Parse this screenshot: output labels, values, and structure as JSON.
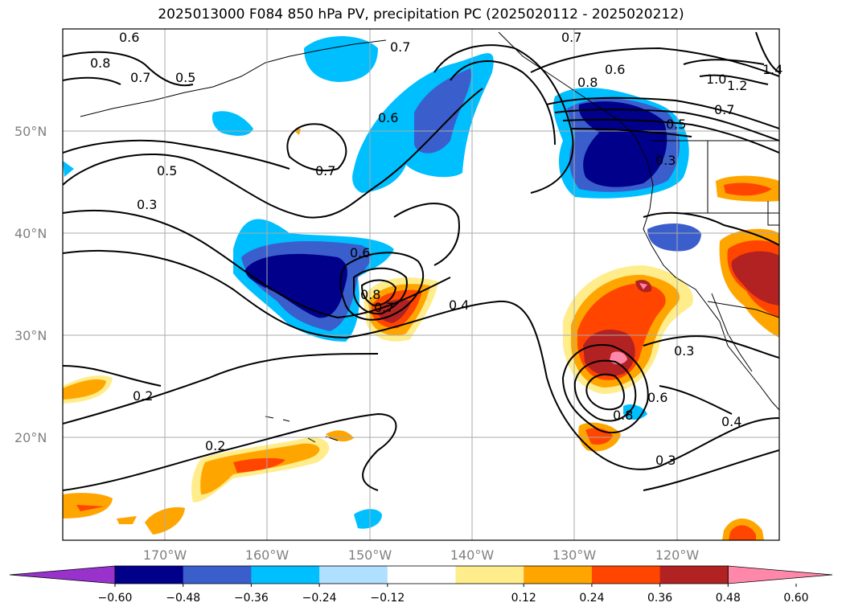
{
  "title": "2025013000 F084 850 hPa PV, precipitation PC (2025020112 - 2025020212)",
  "map": {
    "lat_ticks": [
      "50°N",
      "40°N",
      "30°N",
      "20°N"
    ],
    "lon_ticks": [
      "170°W",
      "160°W",
      "150°W",
      "140°W",
      "130°W",
      "120°W"
    ],
    "extent": {
      "lon_min": -180,
      "lon_max": -110,
      "lat_min": 10,
      "lat_max": 60
    },
    "gridlines": true
  },
  "contour_labels": [
    "0.6",
    "0.5",
    "0.8",
    "0.7",
    "0.7",
    "0.6",
    "0.7",
    "0.6",
    "1.4",
    "1.2",
    "1.0",
    "0.8",
    "0.7",
    "0.5",
    "0.3",
    "0.5",
    "0.3",
    "0.7",
    "0.6",
    "0.8",
    "0.7",
    "0.4",
    "0.2",
    "0.2",
    "0.3",
    "0.8",
    "0.6",
    "0.3",
    "0.4"
  ],
  "colorbar": {
    "ticks": [
      "−0.60",
      "−0.48",
      "−0.36",
      "−0.24",
      "−0.12",
      "0.12",
      "0.24",
      "0.36",
      "0.48",
      "0.60"
    ],
    "colors": [
      "#9932cc",
      "#00008b",
      "#3a5fcd",
      "#00bfff",
      "#b0e0ff",
      "#ffffff",
      "#ffec8b",
      "#ffa500",
      "#ff4500",
      "#b22222",
      "#ff88aa"
    ]
  }
}
